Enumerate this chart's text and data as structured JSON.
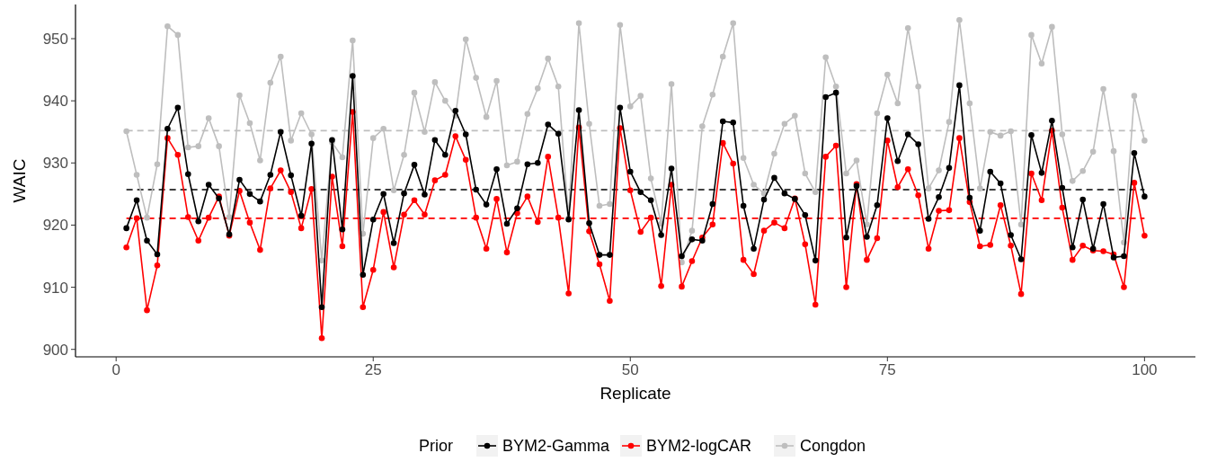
{
  "chart_data": {
    "type": "line",
    "xlabel": "Replicate",
    "ylabel": "WAIC",
    "legend_title": "Prior",
    "legend": "bottom",
    "marker": "circle",
    "line_style": "solid",
    "grid": false,
    "x": [
      1,
      2,
      3,
      4,
      5,
      6,
      7,
      8,
      9,
      10,
      11,
      12,
      13,
      14,
      15,
      16,
      17,
      18,
      19,
      20,
      21,
      22,
      23,
      24,
      25,
      26,
      27,
      28,
      29,
      30,
      31,
      32,
      33,
      34,
      35,
      36,
      37,
      38,
      39,
      40,
      41,
      42,
      43,
      44,
      45,
      46,
      47,
      48,
      49,
      50,
      51,
      52,
      53,
      54,
      55,
      56,
      57,
      58,
      59,
      60,
      61,
      62,
      63,
      64,
      65,
      66,
      67,
      68,
      69,
      70,
      71,
      72,
      73,
      74,
      75,
      76,
      77,
      78,
      79,
      80,
      81,
      82,
      83,
      84,
      85,
      86,
      87,
      88,
      89,
      90,
      91,
      92,
      93,
      94,
      95,
      96,
      97,
      98,
      99,
      100
    ],
    "xlim": [
      -3.95,
      104.95
    ],
    "xticks": [
      0,
      25,
      50,
      75,
      100
    ],
    "ylim": [
      898.8,
      955.5
    ],
    "yticks": [
      900,
      910,
      920,
      930,
      940,
      950
    ],
    "series": [
      {
        "name": "BYM2-Gamma",
        "color": "#000000",
        "values": [
          919.5,
          924,
          917.5,
          915.3,
          935.5,
          938.9,
          928.2,
          920.6,
          926.5,
          924.3,
          918.5,
          927.3,
          925,
          923.8,
          928.1,
          935,
          928,
          921.5,
          933.1,
          906.8,
          933.7,
          919.3,
          944,
          912,
          920.9,
          925,
          917.1,
          925.1,
          929.7,
          924.9,
          933.7,
          931.3,
          938.4,
          934.6,
          925.7,
          923.3,
          929,
          920.2,
          922.7,
          929.8,
          930,
          936.2,
          934.7,
          920.9,
          938.5,
          920.3,
          915.2,
          915.2,
          938.9,
          928.6,
          925.3,
          924,
          918.4,
          929.1,
          915,
          917.7,
          917.5,
          923.4,
          936.7,
          936.5,
          923.1,
          916.2,
          924.1,
          927.6,
          925.1,
          924.2,
          921.6,
          914.3,
          940.6,
          941.3,
          918,
          926.3,
          918.1,
          923.2,
          937.2,
          930.3,
          934.6,
          933,
          921,
          924.5,
          929.2,
          942.5,
          924.4,
          919.1,
          928.6,
          926.7,
          918.4,
          914.5,
          934.5,
          928.4,
          936.8,
          926,
          916.4,
          924.1,
          916.2,
          923.4,
          914.8,
          915,
          931.6,
          924.6
        ]
      },
      {
        "name": "BYM2-logCAR",
        "color": "#ff0000",
        "values": [
          916.4,
          921.1,
          906.3,
          913.5,
          934,
          931.3,
          921.3,
          917.5,
          921.2,
          924.6,
          918.3,
          925.5,
          920.4,
          916,
          925.9,
          928.8,
          925.3,
          919.5,
          925.8,
          901.8,
          927.8,
          916.6,
          938.2,
          906.8,
          912.8,
          922.1,
          913.2,
          921.7,
          924,
          921.7,
          927.2,
          928.1,
          934.3,
          930.5,
          921.2,
          916.2,
          924.2,
          915.6,
          921.9,
          924.6,
          920.5,
          931,
          921.2,
          909,
          935.7,
          919,
          913.7,
          907.8,
          935.6,
          925.6,
          918.9,
          921.2,
          910.2,
          926.5,
          910.1,
          914.2,
          918,
          920.1,
          933.2,
          929.9,
          914.4,
          912.1,
          919.1,
          920.4,
          919.5,
          924.3,
          916.9,
          907.2,
          931,
          932.8,
          910,
          926.6,
          914.4,
          917.9,
          933.6,
          926.1,
          929,
          924.8,
          916.2,
          922.3,
          922.4,
          934,
          923.7,
          916.6,
          916.8,
          923.2,
          916.7,
          908.9,
          928.3,
          924,
          935.2,
          922.8,
          914.4,
          916.7,
          915.9,
          915.8,
          915.3,
          910,
          926.8,
          918.3
        ]
      },
      {
        "name": "Congdon",
        "color": "#bebebe",
        "values": [
          935.1,
          928.1,
          921.2,
          929.8,
          952,
          950.6,
          932.5,
          932.7,
          937.2,
          932.7,
          921.3,
          940.9,
          936.4,
          930.4,
          942.9,
          947.1,
          933.6,
          938,
          934.6,
          914.3,
          933.3,
          930.9,
          949.7,
          918.6,
          934,
          935.5,
          925.6,
          931.3,
          941.3,
          935,
          943,
          940,
          937.6,
          949.9,
          943.7,
          937.4,
          943.2,
          929.6,
          930.2,
          937.9,
          942,
          946.8,
          942.3,
          921.1,
          952.5,
          936.3,
          923.1,
          923.4,
          952.2,
          939.1,
          940.8,
          927.5,
          920.2,
          942.7,
          914,
          919.1,
          935.9,
          941,
          947.1,
          952.5,
          930.8,
          926.5,
          925.1,
          931.5,
          936.3,
          937.6,
          928.3,
          925.3,
          947,
          942.3,
          928.3,
          930.4,
          920.1,
          938,
          944.2,
          939.6,
          951.7,
          942.3,
          925.9,
          928.8,
          936.6,
          953,
          939.6,
          925.9,
          935,
          934.4,
          935.1,
          920.1,
          950.6,
          946,
          951.9,
          934.6,
          927.1,
          928.7,
          931.8,
          941.9,
          931.9,
          917.2,
          940.8,
          933.6
        ]
      }
    ],
    "ref_lines": [
      {
        "axis": "y",
        "value": 925.7,
        "color": "#000000",
        "line_style": "dashed"
      },
      {
        "axis": "y",
        "value": 921.1,
        "color": "#ff0000",
        "line_style": "dashed"
      },
      {
        "axis": "y",
        "value": 935.2,
        "color": "#bebebe",
        "line_style": "dashed"
      }
    ]
  }
}
